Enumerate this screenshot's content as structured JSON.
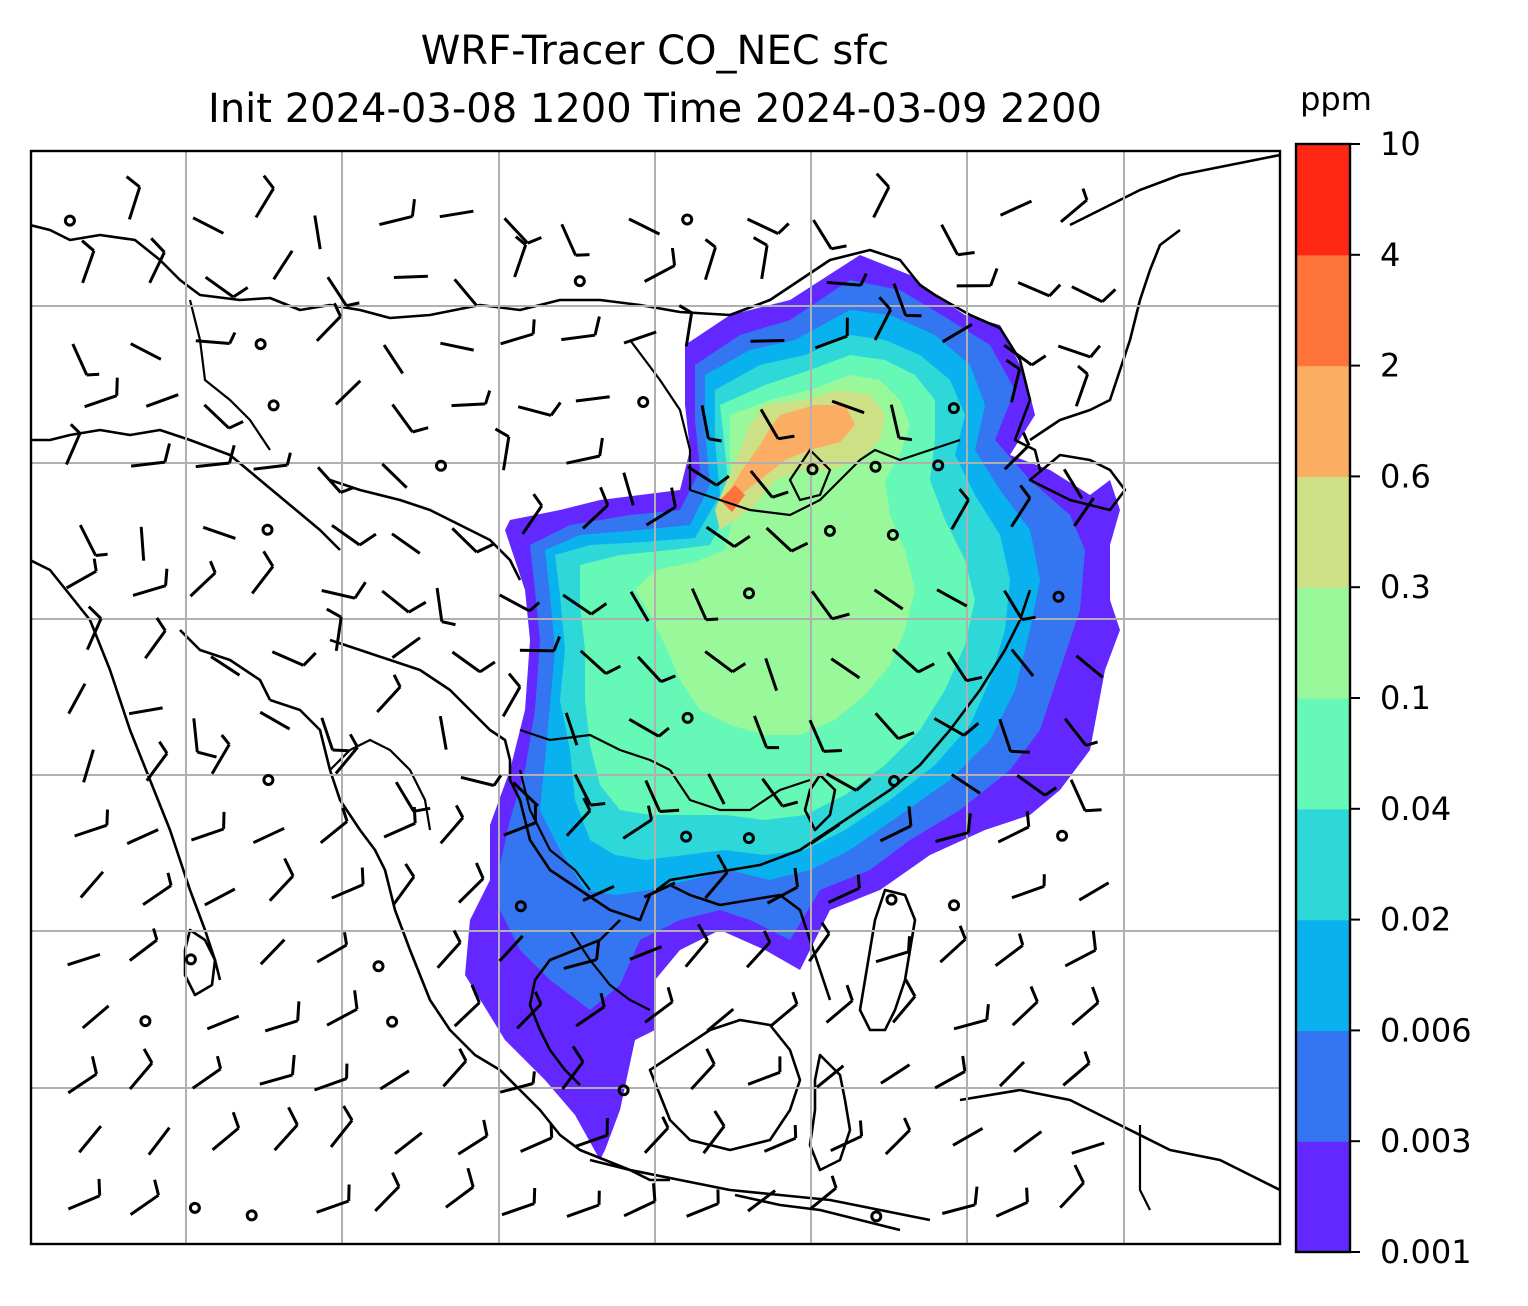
{
  "title": {
    "line1": "WRF-Tracer CO_NEC sfc",
    "line2": "Init 2024-03-08 1200 Time 2024-03-09 2200"
  },
  "colorbar": {
    "unit": "ppm",
    "ticks": [
      "0.001",
      "0.003",
      "0.006",
      "0.02",
      "0.04",
      "0.1",
      "0.3",
      "0.6",
      "2",
      "4",
      "10"
    ],
    "colors": [
      "#6228ff",
      "#3476f1",
      "#09b2ee",
      "#2ed8d8",
      "#65f8b6",
      "#98f89a",
      "#cee085",
      "#fbae63",
      "#ff7439",
      "#ff2814"
    ]
  },
  "map": {
    "grid": true,
    "features": [
      "coastlines",
      "country borders",
      "wind barbs",
      "CO tracer concentration field"
    ]
  }
}
